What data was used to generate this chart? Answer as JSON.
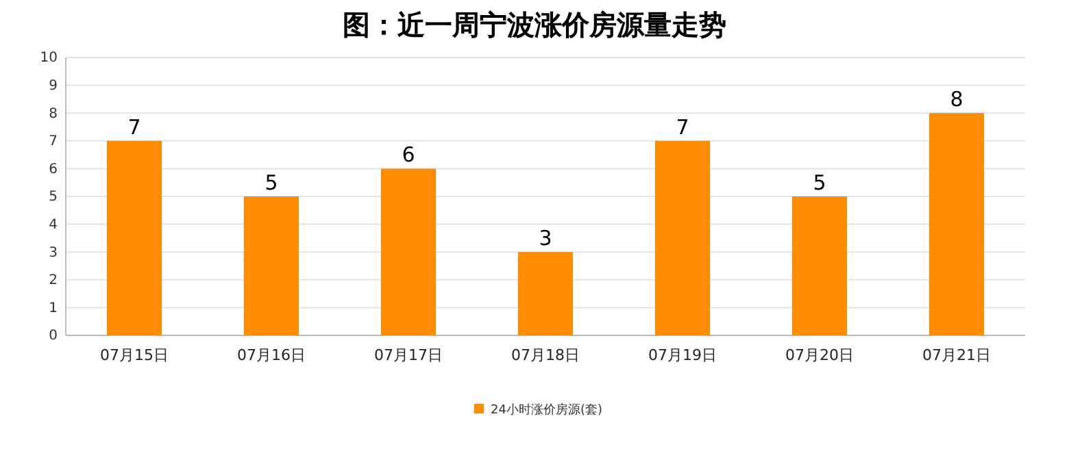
{
  "chart_data": {
    "type": "bar",
    "title": "图：近一周宁波涨价房源量走势",
    "categories": [
      "07月15日",
      "07月16日",
      "07月17日",
      "07月18日",
      "07月19日",
      "07月20日",
      "07月21日"
    ],
    "series": [
      {
        "name": "24小时涨价房源(套)",
        "color": "#ff8c00",
        "values": [
          7,
          5,
          6,
          3,
          7,
          5,
          8
        ]
      }
    ],
    "ylim": [
      0,
      10
    ],
    "yticks": [
      0,
      1,
      2,
      3,
      4,
      5,
      6,
      7,
      8,
      9,
      10
    ],
    "grid": "y",
    "legend": "bottom",
    "data_labels": true
  }
}
